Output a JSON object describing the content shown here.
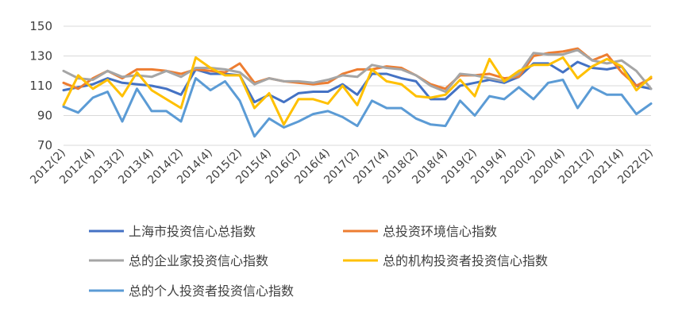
{
  "chart_data": {
    "type": "line",
    "title": "",
    "xlabel": "",
    "ylabel": "",
    "ylim": [
      70,
      150
    ],
    "yticks": [
      70,
      90,
      110,
      130,
      150
    ],
    "grid": "horizontal",
    "legend_position": "bottom",
    "x": [
      "2012(2)",
      "2012(3)",
      "2012(4)",
      "2013(1)",
      "2013(2)",
      "2013(3)",
      "2013(4)",
      "2014(1)",
      "2014(2)",
      "2014(3)",
      "2014(4)",
      "2015(1)",
      "2015(2)",
      "2015(3)",
      "2015(4)",
      "2016(1)",
      "2016(2)",
      "2016(3)",
      "2016(4)",
      "2017(1)",
      "2017(2)",
      "2017(3)",
      "2017(4)",
      "2018(1)",
      "2018(2)",
      "2018(3)",
      "2018(4)",
      "2019(1)",
      "2019(2)",
      "2019(3)",
      "2019(4)",
      "2020(1)",
      "2020(2)",
      "2020(3)",
      "2020(4)",
      "2021(1)",
      "2021(2)",
      "2021(3)",
      "2021(4)",
      "2022(1)",
      "2022(2)"
    ],
    "x_tick_labels": [
      "2012(2)",
      "2012(4)",
      "2013(2)",
      "2013(4)",
      "2014(2)",
      "2014(4)",
      "2015(2)",
      "2015(4)",
      "2016(2)",
      "2016(4)",
      "2017(2)",
      "2017(4)",
      "2018(2)",
      "2018(4)",
      "2019(2)",
      "2019(4)",
      "2020(2)",
      "2020(4)",
      "2021(2)",
      "2021(4)",
      "2022(2)"
    ],
    "series": [
      {
        "name": "上海市投资信心总指数",
        "color": "#4472C4",
        "values": [
          107,
          109,
          111,
          115,
          112,
          111,
          110,
          108,
          104,
          121,
          118,
          118,
          117,
          99,
          104,
          99,
          105,
          106,
          106,
          111,
          104,
          118,
          118,
          115,
          113,
          101,
          101,
          110,
          112,
          114,
          112,
          116,
          125,
          125,
          119,
          126,
          122,
          121,
          123,
          110,
          108
        ]
      },
      {
        "name": "总投资环境信心指数",
        "color": "#ED7D31",
        "values": [
          112,
          108,
          115,
          120,
          115,
          121,
          121,
          120,
          118,
          121,
          120,
          119,
          125,
          112,
          115,
          113,
          112,
          111,
          112,
          118,
          121,
          121,
          123,
          122,
          117,
          111,
          108,
          117,
          117,
          118,
          115,
          116,
          130,
          132,
          133,
          135,
          127,
          131,
          119,
          110,
          115
        ]
      },
      {
        "name": "总的企业家投资信心指数",
        "color": "#A5A5A5",
        "values": [
          120,
          115,
          114,
          120,
          116,
          117,
          116,
          120,
          116,
          122,
          122,
          121,
          119,
          111,
          115,
          113,
          113,
          112,
          114,
          117,
          116,
          124,
          122,
          121,
          117,
          110,
          106,
          118,
          117,
          115,
          113,
          118,
          132,
          131,
          131,
          134,
          127,
          125,
          127,
          120,
          108
        ]
      },
      {
        "name": "总的机构投资者投资信心指数",
        "color": "#FFC000",
        "values": [
          97,
          117,
          108,
          114,
          103,
          119,
          107,
          101,
          95,
          129,
          122,
          117,
          117,
          95,
          105,
          84,
          101,
          101,
          98,
          110,
          97,
          121,
          113,
          111,
          103,
          102,
          104,
          114,
          103,
          128,
          113,
          120,
          124,
          124,
          129,
          115,
          123,
          128,
          123,
          107,
          116
        ]
      },
      {
        "name": "总的个人投资者投资信心指数",
        "color": "#5B9BD5",
        "values": [
          96,
          92,
          102,
          106,
          86,
          108,
          93,
          93,
          86,
          115,
          107,
          113,
          100,
          76,
          88,
          82,
          86,
          91,
          93,
          89,
          83,
          100,
          95,
          95,
          88,
          84,
          83,
          100,
          90,
          103,
          101,
          109,
          101,
          112,
          114,
          95,
          109,
          104,
          104,
          91,
          98
        ]
      }
    ]
  }
}
